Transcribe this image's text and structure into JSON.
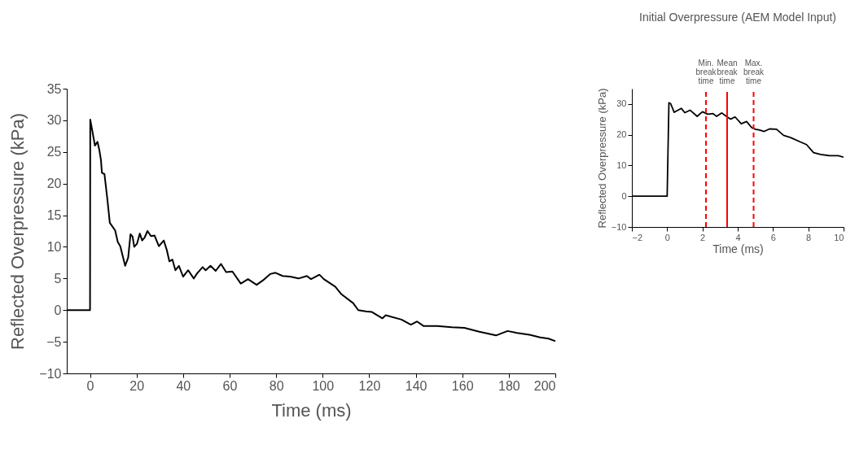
{
  "chart_data": [
    {
      "type": "line",
      "xlabel": "Time (ms)",
      "ylabel": "Reflected Overpressure (kPa)",
      "xlim": [
        -10,
        200
      ],
      "ylim": [
        -10,
        35
      ],
      "xticks": [
        0,
        20,
        40,
        60,
        80,
        100,
        120,
        140,
        160,
        180,
        200
      ],
      "yticks": [
        -10,
        -5,
        0,
        5,
        10,
        15,
        20,
        25,
        30,
        35
      ],
      "grid": false,
      "series": [
        {
          "color": "#000000",
          "x": [
            -10,
            0,
            0.1,
            1,
            2.1,
            3.2,
            4,
            4.7,
            5.1,
            6.2,
            7.4,
            8.5,
            10.8,
            11.9,
            13,
            15.1,
            16.4,
            17.4,
            18.3,
            19,
            20.2,
            21.4,
            22.4,
            23.5,
            24.7,
            26.2,
            27.7,
            29.6,
            31.7,
            33,
            34.1,
            35.4,
            36.7,
            38.2,
            40,
            42.2,
            44.6,
            46,
            48.4,
            49.7,
            51.8,
            54,
            56.3,
            58.5,
            61.2,
            64.8,
            67.9,
            71.6,
            74.3,
            77.4,
            79.7,
            82.8,
            86,
            89.6,
            93.2,
            95,
            98.6,
            100.5,
            105.4,
            108.1,
            113.1,
            115.3,
            118.5,
            121.2,
            125.7,
            127.1,
            133.9,
            137.9,
            140.6,
            143.3,
            149.2,
            155.5,
            160.9,
            167.3,
            174.5,
            179.5,
            183.5,
            188.9,
            193.5,
            197.1,
            200
          ],
          "values": [
            0,
            0,
            30.1,
            28.3,
            26,
            26.6,
            25.3,
            23.7,
            21.7,
            21.5,
            17.7,
            13.8,
            12.6,
            10.8,
            10.1,
            7,
            8.3,
            12,
            11.6,
            10,
            10.5,
            12.1,
            11,
            11.5,
            12.5,
            11.7,
            11.8,
            10.1,
            11,
            9.5,
            7.7,
            8,
            6.3,
            7,
            5.3,
            6.3,
            5,
            5.8,
            6.8,
            6.3,
            7,
            6.2,
            7.3,
            6,
            6.1,
            4.2,
            4.9,
            4,
            4.7,
            5.7,
            5.9,
            5.4,
            5.3,
            5,
            5.4,
            4.9,
            5.6,
            4.9,
            3.7,
            2.5,
            1.1,
            0,
            -0.2,
            -0.3,
            -1.3,
            -0.8,
            -1.5,
            -2.3,
            -1.8,
            -2.5,
            -2.5,
            -2.7,
            -2.8,
            -3.4,
            -4,
            -3.3,
            -3.6,
            -3.9,
            -4.3,
            -4.5,
            -4.9
          ]
        }
      ]
    },
    {
      "type": "line",
      "title": "Initial Overpressure (AEM Model Input)",
      "xlabel": "Time (ms)",
      "ylabel": "Reflected Overpressure (kPa)",
      "xlim": [
        -2,
        10
      ],
      "ylim": [
        -10,
        35
      ],
      "xticks": [
        -2,
        0,
        2,
        4,
        6,
        8,
        10
      ],
      "yticks": [
        -10,
        0,
        10,
        20,
        30
      ],
      "grid": false,
      "series": [
        {
          "color": "#000000",
          "x": [
            -2,
            0,
            0.1,
            0.2,
            0.4,
            0.8,
            1.0,
            1.3,
            1.7,
            2.0,
            2.3,
            2.6,
            2.8,
            3.1,
            3.4,
            3.6,
            3.85,
            4.2,
            4.5,
            4.8,
            5.0,
            5.2,
            5.5,
            5.8,
            6.2,
            6.6,
            7.0,
            7.5,
            7.9,
            8.3,
            8.7,
            9.2,
            9.7,
            10
          ],
          "values": [
            0,
            0,
            30.4,
            30.1,
            27.3,
            28.6,
            27.2,
            28,
            26,
            27.5,
            26.7,
            26.9,
            26,
            27.1,
            25.8,
            25.1,
            25.8,
            23.6,
            24.3,
            22.3,
            21.8,
            21.6,
            21.1,
            21.9,
            21.8,
            19.8,
            19.1,
            17.8,
            16.8,
            14.2,
            13.6,
            13.2,
            13.2,
            12.7
          ]
        }
      ],
      "ref_lines": [
        {
          "axis": "x",
          "value": 2.2,
          "label": "Min. break time",
          "color": "#ff0000",
          "line_style": "dashed"
        },
        {
          "axis": "x",
          "value": 3.4,
          "label": "Mean break time",
          "color": "#ff0000",
          "line_style": "solid"
        },
        {
          "axis": "x",
          "value": 4.9,
          "label": "Max. break time",
          "color": "#ff0000",
          "line_style": "dashed"
        }
      ]
    }
  ]
}
